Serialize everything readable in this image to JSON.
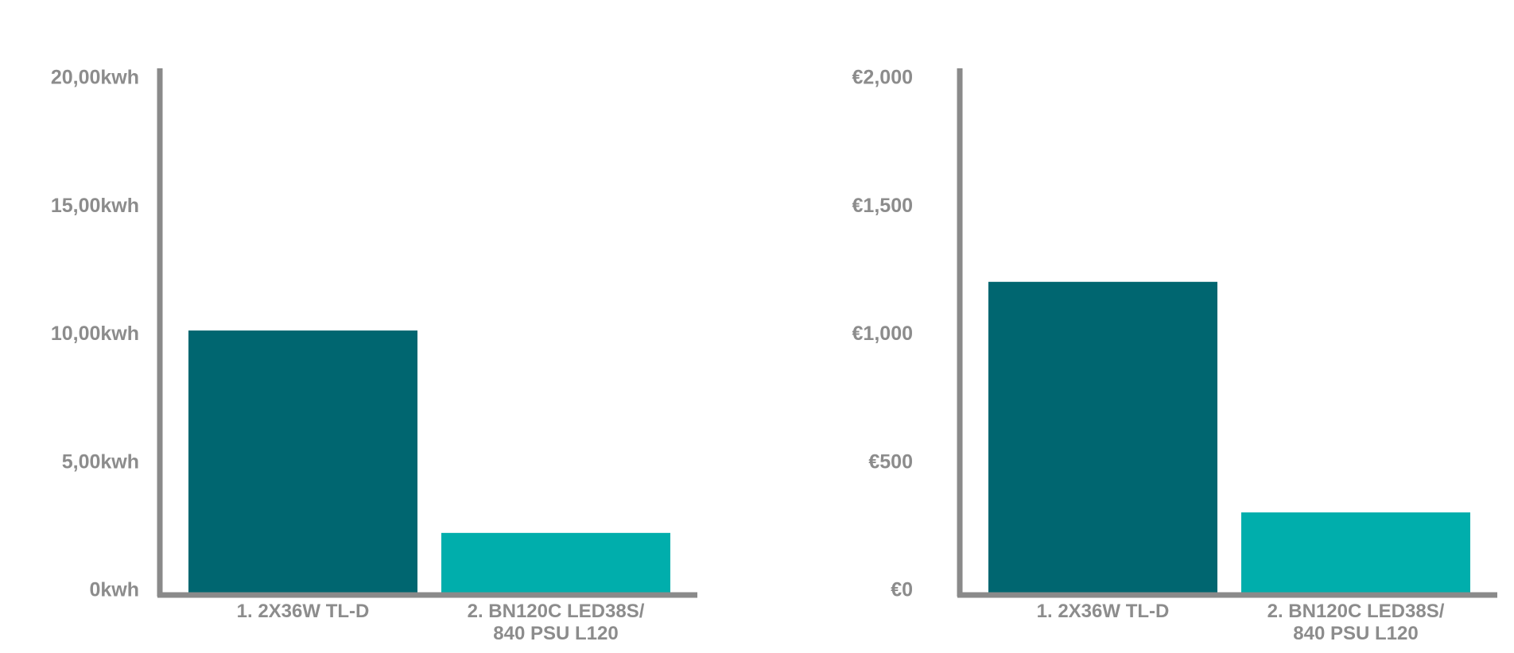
{
  "colors": {
    "axis": "#8a8a8a",
    "tick_text": "#8c8c8c",
    "bar_series_1": "#006670",
    "bar_series_2": "#00aeac",
    "background": "#ffffff"
  },
  "chart_data": [
    {
      "type": "bar",
      "title": "",
      "xlabel": "",
      "ylabel": "",
      "categories": [
        [
          "1. 2X36W TL-D"
        ],
        [
          "2. BN120C LED38S/",
          "840 PSU L120"
        ]
      ],
      "values": [
        10200,
        2300
      ],
      "yticks": [
        0,
        5000,
        10000,
        15000,
        20000
      ],
      "ytick_labels": [
        "0kwh",
        "5,00kwh",
        "10,00kwh",
        "15,00kwh",
        "20,00kwh"
      ],
      "ylim": [
        0,
        20000
      ],
      "grid": false,
      "legend": "none"
    },
    {
      "type": "bar",
      "title": "",
      "xlabel": "",
      "ylabel": "",
      "categories": [
        [
          "1. 2X36W TL-D"
        ],
        [
          "2. BN120C LED38S/",
          "840 PSU L120"
        ]
      ],
      "values": [
        1210,
        310
      ],
      "yticks": [
        0,
        500,
        1000,
        1500,
        2000
      ],
      "ytick_labels": [
        "€0",
        "€500",
        "€1,000",
        "€1,500",
        "€2,000"
      ],
      "ylim": [
        0,
        2000
      ],
      "grid": false,
      "legend": "none"
    }
  ]
}
